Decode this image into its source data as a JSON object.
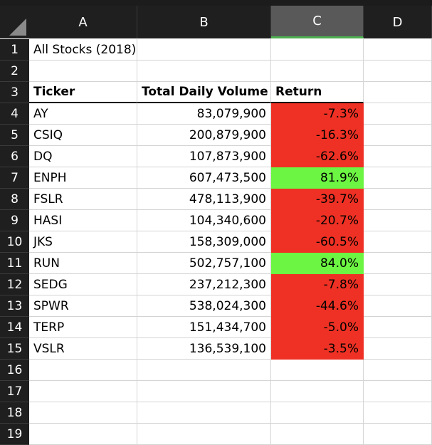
{
  "columns": [
    "A",
    "B",
    "C",
    "D"
  ],
  "selected_column": "C",
  "rows": [
    "1",
    "2",
    "3",
    "4",
    "5",
    "6",
    "7",
    "8",
    "9",
    "10",
    "11",
    "12",
    "13",
    "14",
    "15",
    "16",
    "17",
    "18",
    "19"
  ],
  "title": "All Stocks (2018)",
  "headers": {
    "ticker": "Ticker",
    "volume": "Total Daily Volume",
    "return": "Return"
  },
  "colors": {
    "negative": "#ee3124",
    "positive": "#6cf542",
    "header_bg": "#1f1f1f",
    "selected_header_bg": "#595959"
  },
  "stocks": [
    {
      "ticker": "AY",
      "volume": "83,079,900",
      "return": "-7.3%",
      "status": "negative"
    },
    {
      "ticker": "CSIQ",
      "volume": "200,879,900",
      "return": "-16.3%",
      "status": "negative"
    },
    {
      "ticker": "DQ",
      "volume": "107,873,900",
      "return": "-62.6%",
      "status": "negative"
    },
    {
      "ticker": "ENPH",
      "volume": "607,473,500",
      "return": "81.9%",
      "status": "positive"
    },
    {
      "ticker": "FSLR",
      "volume": "478,113,900",
      "return": "-39.7%",
      "status": "negative"
    },
    {
      "ticker": "HASI",
      "volume": "104,340,600",
      "return": "-20.7%",
      "status": "negative"
    },
    {
      "ticker": "JKS",
      "volume": "158,309,000",
      "return": "-60.5%",
      "status": "negative"
    },
    {
      "ticker": "RUN",
      "volume": "502,757,100",
      "return": "84.0%",
      "status": "positive"
    },
    {
      "ticker": "SEDG",
      "volume": "237,212,300",
      "return": "-7.8%",
      "status": "negative"
    },
    {
      "ticker": "SPWR",
      "volume": "538,024,300",
      "return": "-44.6%",
      "status": "negative"
    },
    {
      "ticker": "TERP",
      "volume": "151,434,700",
      "return": "-5.0%",
      "status": "negative"
    },
    {
      "ticker": "VSLR",
      "volume": "136,539,100",
      "return": "-3.5%",
      "status": "negative"
    }
  ]
}
